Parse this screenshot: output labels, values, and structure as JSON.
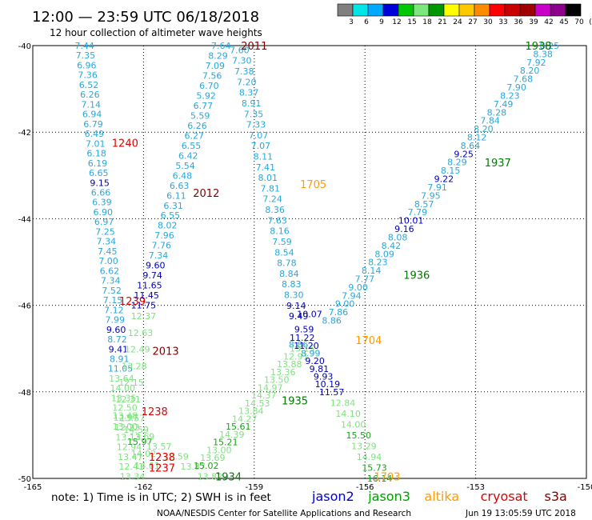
{
  "header": {
    "title": "12:00 — 23:59 UTC 06/18/2018",
    "subtitle": "12 hour collection of altimeter wave heights"
  },
  "colorbar": {
    "colors": [
      "#808080",
      "#00e5e5",
      "#00a8ff",
      "#0000d8",
      "#00c800",
      "#7ce87c",
      "#009600",
      "#ffff00",
      "#ffc800",
      "#ff8c00",
      "#ff0000",
      "#c80000",
      "#a00000",
      "#c800c8",
      "#8c008c",
      "#000000"
    ],
    "labels": [
      "3",
      "6",
      "9",
      "12",
      "15",
      "18",
      "21",
      "24",
      "27",
      "30",
      "33",
      "36",
      "39",
      "42",
      "45",
      "70",
      "(ft)"
    ]
  },
  "chart_data": {
    "type": "scatter",
    "title": "12 hour collection of altimeter wave heights",
    "xlim": [
      -165,
      -150
    ],
    "ylim": [
      -50,
      -40
    ],
    "x_ticks": [
      "-165",
      "-162",
      "-159",
      "-156",
      "-153",
      "-150"
    ],
    "y_ticks": [
      "-40",
      "-42",
      "-44",
      "-46",
      "-48",
      "-50"
    ],
    "value_colors": {
      "sky": "#2aa7d8",
      "navy": "#0000bb",
      "lgreen": "#7fe27f",
      "green": "#1aa01a"
    },
    "label_colors": {
      "red": "#e00000",
      "maroon": "#800000",
      "orange": "#ff9c00",
      "green": "#007a00"
    },
    "tracks": [
      {
        "lon0": -163.6,
        "lon1": -162.3,
        "lat0": -40.0,
        "lat1": -49.95,
        "values": [
          "7.44",
          "7.35",
          "6.96",
          "7.36",
          "6.52",
          "6.26",
          "7.14",
          "6.94",
          "6.79",
          "6.49",
          "7.01",
          "6.18",
          "6.19",
          "6.65",
          "9.15",
          "6.66",
          "6.39",
          "6.90",
          "6.97",
          "7.25",
          "7.34",
          "7.45",
          "7.00",
          "6.62",
          "7.34",
          "7.52",
          "7.15",
          "7.12",
          "7.99",
          "9.60",
          "8.72",
          "9.41",
          "8.91",
          "11.05",
          "13.64",
          "14.00",
          "13.35",
          "12.50",
          "12.97",
          "12.22",
          "13.13",
          "12.94",
          "13.47",
          "12.41",
          "13.34"
        ],
        "colors": [
          "sky",
          "sky",
          "sky",
          "sky",
          "sky",
          "sky",
          "sky",
          "sky",
          "sky",
          "sky",
          "sky",
          "sky",
          "sky",
          "sky",
          "navy",
          "sky",
          "sky",
          "sky",
          "sky",
          "sky",
          "sky",
          "sky",
          "sky",
          "sky",
          "sky",
          "sky",
          "sky",
          "sky",
          "sky",
          "navy",
          "sky",
          "navy",
          "sky",
          "sky",
          "lgreen",
          "lgreen",
          "lgreen",
          "lgreen",
          "lgreen",
          "lgreen",
          "lgreen",
          "lgreen",
          "lgreen",
          "lgreen",
          "lgreen"
        ]
      },
      {
        "lon0": -159.9,
        "lon1": -162.0,
        "lat0": -40.0,
        "lat1": -46.0,
        "values": [
          "7.64",
          "8.29",
          "7.09",
          "7.56",
          "6.70",
          "5.92",
          "6.77",
          "5.59",
          "6.26",
          "6.27",
          "6.55",
          "6.42",
          "5.54",
          "6.48",
          "6.63",
          "6.11",
          "6.31",
          "6.55",
          "8.02",
          "7.96",
          "7.76",
          "7.34",
          "9.60",
          "9.74",
          "11.65",
          "11.45",
          "11.75"
        ],
        "colors": [
          "sky",
          "sky",
          "sky",
          "sky",
          "sky",
          "sky",
          "sky",
          "sky",
          "sky",
          "sky",
          "sky",
          "sky",
          "sky",
          "sky",
          "sky",
          "sky",
          "sky",
          "sky",
          "sky",
          "sky",
          "sky",
          "sky",
          "navy",
          "navy",
          "navy",
          "navy",
          "navy"
        ]
      },
      {
        "lon0": -162.0,
        "lon1": -162.5,
        "lat0": -46.25,
        "lat1": -48.55,
        "values": [
          "12.37",
          "12.63",
          "12.49",
          "13.28",
          "12.15",
          "12.31",
          "13.48"
        ],
        "colors": [
          "lgreen",
          "lgreen",
          "lgreen",
          "lgreen",
          "lgreen",
          "lgreen",
          "lgreen"
        ]
      },
      {
        "lon0": -162.3,
        "lon1": -161.9,
        "lat0": -48.6,
        "lat1": -49.7,
        "values": [
          "13.57",
          "14.59",
          "15.97",
          "14.02",
          "14.61"
        ],
        "colors": [
          "lgreen",
          "lgreen",
          "green",
          "lgreen",
          "lgreen"
        ]
      },
      {
        "lon0": -162.5,
        "lon1": -160.2,
        "lat0": -48.8,
        "lat1": -49.95,
        "values": [
          "13.00",
          "13.69",
          "13.57",
          "12.59",
          "13.87",
          "13.82"
        ],
        "colors": [
          "lgreen",
          "lgreen",
          "lgreen",
          "lgreen",
          "lgreen",
          "lgreen"
        ]
      },
      {
        "lon0": -159.4,
        "lon1": -157.8,
        "lat0": -40.1,
        "lat1": -46.25,
        "values": [
          "7.60",
          "7.30",
          "7.38",
          "7.20",
          "8.37",
          "8.91",
          "7.35",
          "7.33",
          "7.07",
          "7.07",
          "8.11",
          "7.41",
          "8.01",
          "7.81",
          "7.24",
          "8.36",
          "7.63",
          "8.16",
          "7.59",
          "8.54",
          "8.78",
          "8.84",
          "8.83",
          "8.30",
          "9.14",
          "9.49"
        ],
        "colors": [
          "sky",
          "sky",
          "sky",
          "sky",
          "sky",
          "sky",
          "sky",
          "sky",
          "sky",
          "sky",
          "sky",
          "sky",
          "sky",
          "sky",
          "sky",
          "sky",
          "sky",
          "sky",
          "sky",
          "sky",
          "sky",
          "sky",
          "sky",
          "sky",
          "navy",
          "navy"
        ]
      },
      {
        "lon0": -157.5,
        "lon1": -157.8,
        "lat0": -46.2,
        "lat1": -46.9,
        "values": [
          "10.07",
          "9.59",
          "8.86"
        ],
        "colors": [
          "navy",
          "navy",
          "sky"
        ]
      },
      {
        "lon0": -157.7,
        "lon1": -160.3,
        "lat0": -47.0,
        "lat1": -49.7,
        "values": [
          "13.15",
          "12.91",
          "13.88",
          "13.36",
          "13.50",
          "14.97",
          "14.37",
          "14.53",
          "13.84",
          "14.27",
          "15.61",
          "14.39",
          "15.21",
          "13.00",
          "13.69",
          "15.02"
        ],
        "colors": [
          "lgreen",
          "lgreen",
          "lgreen",
          "lgreen",
          "lgreen",
          "lgreen",
          "lgreen",
          "lgreen",
          "lgreen",
          "lgreen",
          "green",
          "lgreen",
          "green",
          "lgreen",
          "lgreen",
          "green"
        ]
      },
      {
        "lon0": -157.7,
        "lon1": -156.9,
        "lat0": -46.75,
        "lat1": -48.0,
        "values": [
          "11.22",
          "11.20",
          "8.99",
          "9.20",
          "9.81",
          "9.93",
          "10.19",
          "11.57"
        ],
        "colors": [
          "navy",
          "navy",
          "sky",
          "navy",
          "navy",
          "navy",
          "navy",
          "navy"
        ]
      },
      {
        "lon0": -156.6,
        "lon1": -155.6,
        "lat0": -48.25,
        "lat1": -50.0,
        "values": [
          "12.84",
          "14.10",
          "14.00",
          "15.50",
          "13.29",
          "14.94",
          "15.73",
          "16.14"
        ],
        "colors": [
          "lgreen",
          "lgreen",
          "lgreen",
          "green",
          "lgreen",
          "lgreen",
          "green",
          "green"
        ]
      },
      {
        "lon0": -156.9,
        "lon1": -151.0,
        "lat0": -46.35,
        "lat1": -40.0,
        "values": [
          "8.86",
          "7.86",
          "9.00",
          "7.94",
          "9.00",
          "7.77",
          "8.14",
          "8.23",
          "8.09",
          "8.42",
          "8.08",
          "9.16",
          "10.01",
          "7.79",
          "8.57",
          "7.95",
          "7.91",
          "9.22",
          "8.15",
          "8.29",
          "9.25",
          "8.64",
          "8.12",
          "8.20",
          "7.84",
          "8.28",
          "7.49",
          "8.23",
          "7.90",
          "7.68",
          "8.20",
          "7.92",
          "8.38",
          "8.25"
        ],
        "colors": [
          "sky",
          "sky",
          "sky",
          "sky",
          "sky",
          "sky",
          "sky",
          "sky",
          "sky",
          "sky",
          "sky",
          "navy",
          "navy",
          "sky",
          "sky",
          "sky",
          "sky",
          "navy",
          "sky",
          "sky",
          "navy",
          "sky",
          "sky",
          "sky",
          "sky",
          "sky",
          "sky",
          "sky",
          "sky",
          "sky",
          "sky",
          "sky",
          "sky",
          "sky"
        ]
      }
    ],
    "time_labels": [
      {
        "text": "2011",
        "lon": -159.0,
        "lat": -40.0,
        "color": "maroon"
      },
      {
        "text": "1938",
        "lon": -151.3,
        "lat": -40.0,
        "color": "green"
      },
      {
        "text": "1240",
        "lon": -162.5,
        "lat": -42.25,
        "color": "red"
      },
      {
        "text": "1937",
        "lon": -152.4,
        "lat": -42.7,
        "color": "green"
      },
      {
        "text": "1705",
        "lon": -157.4,
        "lat": -43.2,
        "color": "orange"
      },
      {
        "text": "2012",
        "lon": -160.3,
        "lat": -43.4,
        "color": "maroon"
      },
      {
        "text": "1936",
        "lon": -154.6,
        "lat": -45.3,
        "color": "green"
      },
      {
        "text": "1239",
        "lon": -162.3,
        "lat": -45.9,
        "color": "red"
      },
      {
        "text": "1704",
        "lon": -155.9,
        "lat": -46.8,
        "color": "orange"
      },
      {
        "text": "2013",
        "lon": -161.4,
        "lat": -47.05,
        "color": "maroon"
      },
      {
        "text": "1935",
        "lon": -157.9,
        "lat": -48.2,
        "color": "green"
      },
      {
        "text": "1238",
        "lon": -161.7,
        "lat": -48.45,
        "color": "red"
      },
      {
        "text": "1238",
        "lon": -161.5,
        "lat": -49.5,
        "color": "red"
      },
      {
        "text": "1237",
        "lon": -161.5,
        "lat": -49.75,
        "color": "red"
      },
      {
        "text": "1934",
        "lon": -159.7,
        "lat": -49.95,
        "color": "green"
      },
      {
        "text": "1703",
        "lon": -155.4,
        "lat": -49.95,
        "color": "orange"
      }
    ]
  },
  "footer": {
    "note": "note: 1) Time is in UTC; 2) SWH is in feet",
    "legend": [
      {
        "text": "jason2",
        "color": "#0000cc"
      },
      {
        "text": "jason3",
        "color": "#00a000"
      },
      {
        "text": "altika",
        "color": "#ff9c00"
      },
      {
        "text": "cryosat",
        "color": "#e00000"
      },
      {
        "text": "s3a",
        "color": "#800000"
      }
    ],
    "credit": "NOAA/NESDIS Center for Satellite Applications and Research",
    "timestamp": "Jun 19 13:05:59 UTC 2018"
  }
}
